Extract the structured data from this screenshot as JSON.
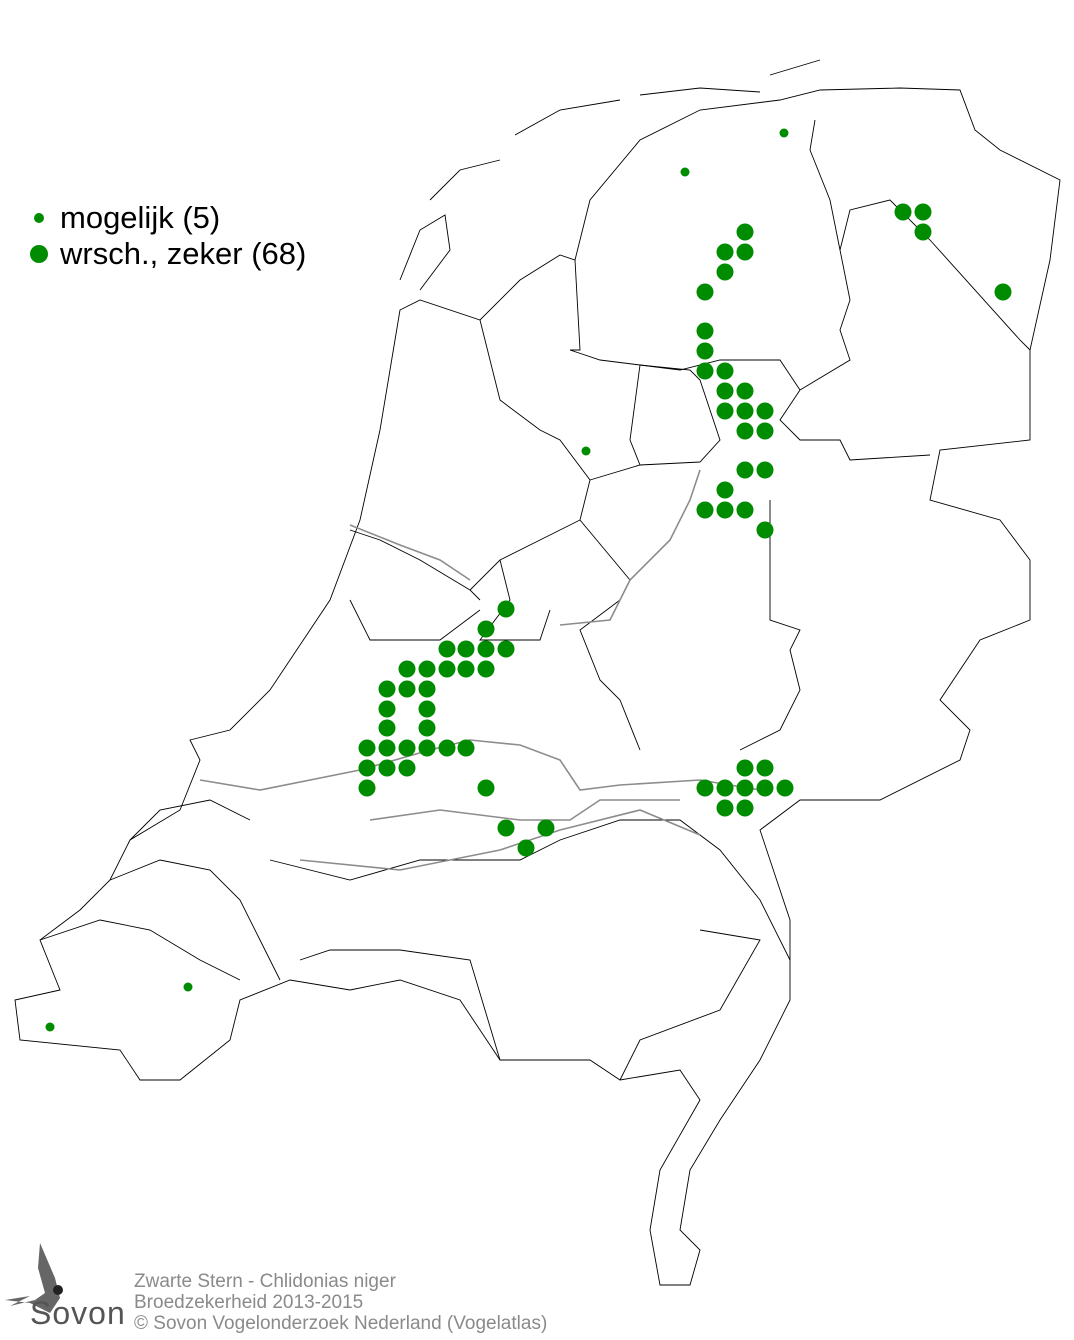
{
  "legend": {
    "items": [
      {
        "label": "mogelijk (5)",
        "category": "mogelijk",
        "count": 5
      },
      {
        "label": "wrsch., zeker (68)",
        "category": "wrsch., zeker",
        "count": 68
      }
    ]
  },
  "colors": {
    "dot": "#008c00",
    "outline": "#000000",
    "water": "#8c8c8c",
    "credits": "#8a8a8a"
  },
  "credits": {
    "line1": "Zwarte Stern - Chlidonias niger",
    "line2": "Broedzekerheid 2013-2015",
    "line3": "© Sovon Vogelonderzoek Nederland (Vogelatlas)"
  },
  "logo": {
    "text": "Sovon"
  }
}
